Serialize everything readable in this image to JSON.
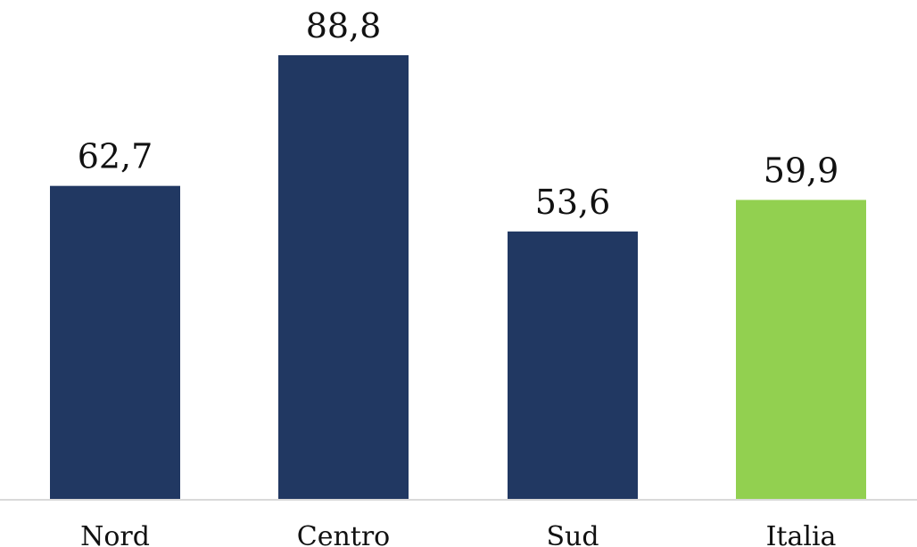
{
  "chart_data": {
    "type": "bar",
    "categories": [
      "Nord",
      "Centro",
      "Sud",
      "Italia"
    ],
    "values": [
      62.7,
      88.8,
      53.6,
      59.9
    ],
    "value_labels": [
      "62,7",
      "88,8",
      "53,6",
      "59,9"
    ],
    "bar_colors": [
      "#213862",
      "#213862",
      "#213862",
      "#92d050"
    ],
    "axis_color": "#d9d9d9",
    "ylim": [
      0,
      100
    ],
    "grid": false,
    "legend": "none"
  }
}
